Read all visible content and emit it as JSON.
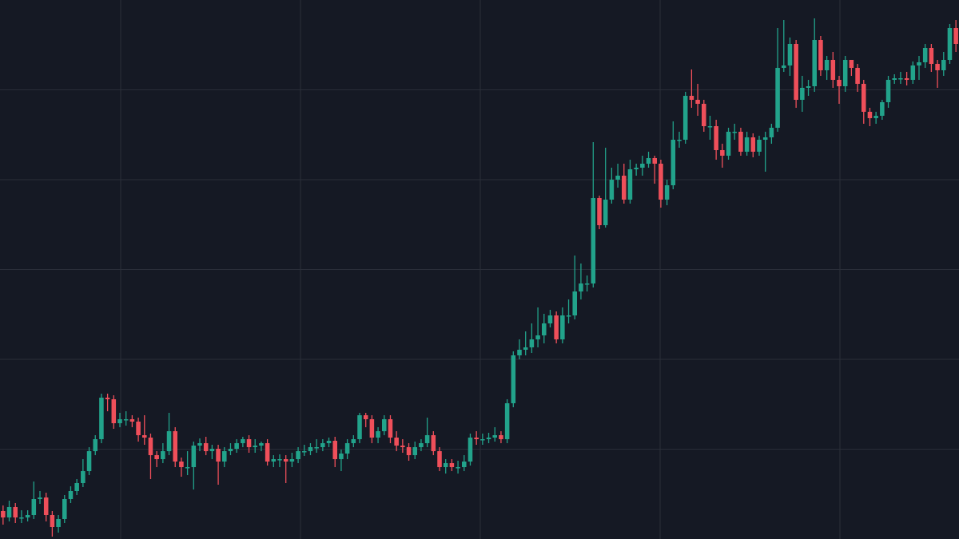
{
  "chart_data": {
    "type": "candlestick",
    "up_color": "#22a38b",
    "down_color": "#ef4f5a",
    "grid": true,
    "ylim": [
      0,
      675
    ],
    "yticks": [
      112.5,
      225,
      337.5,
      450,
      562.5
    ],
    "open": [
      35,
      27,
      40,
      27,
      27,
      30,
      50,
      52,
      30,
      15,
      25,
      50,
      60,
      70,
      85,
      110,
      125,
      177,
      175,
      145,
      150,
      150,
      147,
      130,
      127,
      105,
      100,
      110,
      135,
      97,
      90,
      90,
      117,
      120,
      110,
      113,
      97,
      110,
      113,
      120,
      125,
      115,
      117,
      120,
      97,
      100,
      100,
      97,
      100,
      110,
      110,
      115,
      115,
      120,
      123,
      100,
      107,
      120,
      125,
      155,
      150,
      127,
      135,
      150,
      127,
      117,
      115,
      105,
      115,
      120,
      130,
      110,
      90,
      95,
      90,
      90,
      97,
      127,
      125,
      125,
      127,
      130,
      125,
      170,
      230,
      237,
      240,
      250,
      255,
      270,
      280,
      250,
      280,
      280,
      310,
      320,
      320,
      427,
      393,
      425,
      450,
      455,
      425,
      463,
      465,
      470,
      477,
      470,
      425,
      443,
      500,
      500,
      555,
      550,
      545,
      517,
      517,
      487,
      480,
      510,
      510,
      485,
      503,
      485,
      500,
      503,
      515,
      590,
      593,
      620,
      550,
      565,
      567,
      625,
      587,
      600,
      575,
      567,
      600,
      590,
      570,
      535,
      527,
      530,
      547,
      575,
      577,
      577,
      575,
      593,
      597,
      615,
      595,
      587,
      600,
      640
    ],
    "high": [
      42,
      48,
      45,
      36,
      36,
      72,
      60,
      58,
      35,
      30,
      55,
      66,
      75,
      100,
      115,
      130,
      182,
      182,
      180,
      158,
      160,
      155,
      152,
      155,
      132,
      110,
      120,
      158,
      140,
      102,
      110,
      122,
      126,
      128,
      118,
      118,
      115,
      120,
      125,
      128,
      130,
      125,
      122,
      125,
      105,
      106,
      105,
      108,
      115,
      118,
      120,
      125,
      125,
      127,
      128,
      112,
      125,
      130,
      158,
      158,
      155,
      140,
      155,
      155,
      135,
      125,
      120,
      122,
      125,
      152,
      135,
      115,
      100,
      100,
      98,
      105,
      132,
      135,
      132,
      133,
      140,
      135,
      175,
      235,
      250,
      260,
      270,
      290,
      282,
      287,
      285,
      290,
      300,
      355,
      345,
      330,
      497,
      430,
      490,
      465,
      470,
      470,
      475,
      470,
      480,
      485,
      480,
      475,
      450,
      523,
      510,
      560,
      588,
      570,
      550,
      530,
      525,
      495,
      515,
      520,
      515,
      510,
      508,
      505,
      510,
      520,
      640,
      650,
      628,
      625,
      580,
      575,
      652,
      630,
      605,
      610,
      580,
      605,
      600,
      595,
      575,
      540,
      535,
      550,
      580,
      582,
      585,
      585,
      598,
      605,
      620,
      620,
      600,
      610,
      645,
      650
    ],
    "low": [
      18,
      22,
      20,
      20,
      22,
      25,
      44,
      22,
      3,
      8,
      20,
      45,
      55,
      65,
      80,
      105,
      120,
      160,
      138,
      140,
      142,
      140,
      122,
      118,
      75,
      90,
      95,
      105,
      90,
      78,
      80,
      62,
      110,
      105,
      100,
      68,
      90,
      105,
      108,
      115,
      108,
      108,
      110,
      92,
      90,
      90,
      70,
      90,
      95,
      104,
      105,
      108,
      110,
      115,
      90,
      85,
      100,
      115,
      120,
      140,
      120,
      120,
      130,
      120,
      110,
      108,
      98,
      100,
      110,
      115,
      105,
      85,
      82,
      85,
      82,
      85,
      92,
      118,
      118,
      120,
      122,
      120,
      120,
      165,
      225,
      230,
      233,
      240,
      245,
      265,
      245,
      245,
      270,
      275,
      300,
      310,
      315,
      388,
      390,
      420,
      440,
      420,
      420,
      455,
      455,
      465,
      445,
      415,
      418,
      438,
      490,
      495,
      540,
      530,
      510,
      500,
      475,
      465,
      475,
      500,
      480,
      480,
      478,
      480,
      460,
      495,
      510,
      585,
      580,
      540,
      535,
      555,
      560,
      580,
      575,
      565,
      545,
      560,
      580,
      560,
      520,
      517,
      520,
      525,
      540,
      570,
      570,
      568,
      570,
      575,
      590,
      585,
      565,
      580,
      595,
      610
    ],
    "close": [
      27,
      40,
      27,
      27,
      30,
      50,
      52,
      30,
      15,
      25,
      50,
      60,
      70,
      85,
      110,
      125,
      177,
      175,
      145,
      150,
      150,
      147,
      130,
      127,
      105,
      100,
      110,
      135,
      97,
      90,
      90,
      117,
      120,
      110,
      113,
      97,
      110,
      113,
      120,
      125,
      115,
      117,
      120,
      97,
      100,
      100,
      97,
      100,
      110,
      110,
      115,
      115,
      120,
      123,
      100,
      107,
      120,
      125,
      155,
      150,
      127,
      135,
      150,
      127,
      117,
      115,
      105,
      115,
      120,
      130,
      110,
      90,
      95,
      90,
      90,
      97,
      127,
      125,
      125,
      127,
      130,
      125,
      170,
      230,
      237,
      240,
      250,
      255,
      270,
      280,
      250,
      280,
      280,
      310,
      320,
      320,
      427,
      393,
      425,
      450,
      455,
      425,
      463,
      465,
      470,
      477,
      470,
      425,
      443,
      500,
      500,
      555,
      550,
      545,
      517,
      517,
      487,
      480,
      510,
      510,
      485,
      503,
      485,
      500,
      503,
      515,
      590,
      593,
      620,
      550,
      565,
      567,
      625,
      587,
      600,
      575,
      567,
      600,
      590,
      570,
      535,
      527,
      530,
      547,
      575,
      577,
      577,
      575,
      593,
      597,
      615,
      595,
      587,
      600,
      640,
      620
    ]
  }
}
